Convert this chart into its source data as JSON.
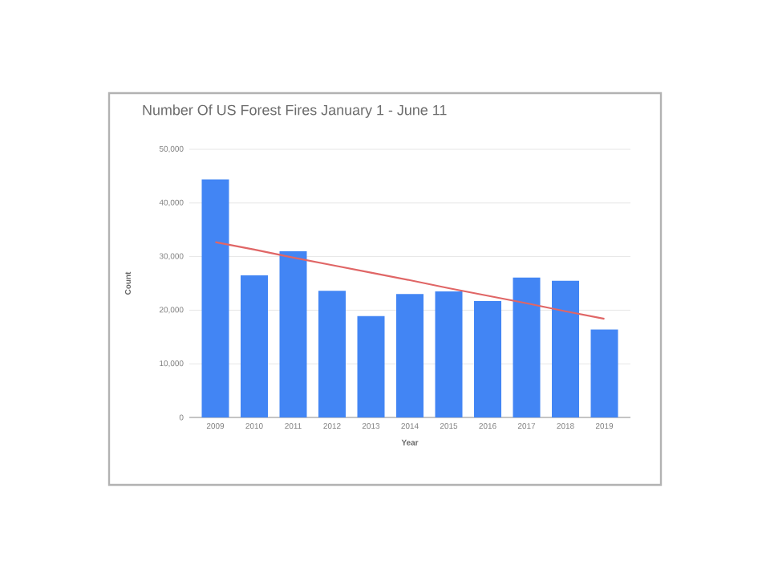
{
  "chart_data": {
    "type": "bar",
    "title": "Number Of US Forest Fires January 1 - June 11",
    "xlabel": "Year",
    "ylabel": "Count",
    "categories": [
      "2009",
      "2010",
      "2011",
      "2012",
      "2013",
      "2014",
      "2015",
      "2016",
      "2017",
      "2018",
      "2019"
    ],
    "series": [
      {
        "type": "bar",
        "color": "#4285f4",
        "values": [
          44400,
          26500,
          31000,
          23600,
          18900,
          23000,
          23500,
          21700,
          26100,
          25500,
          16400
        ]
      },
      {
        "type": "line",
        "color": "#e06666",
        "values": [
          32700,
          31300,
          29800,
          28400,
          27000,
          25600,
          24100,
          22700,
          21300,
          19800,
          18400
        ]
      }
    ],
    "ylim": [
      0,
      50000
    ],
    "yticks": [
      0,
      {
        "value": 10000,
        "label": "10,000"
      },
      {
        "value": 20000,
        "label": "20,000"
      },
      {
        "value": 30000,
        "label": "30,000"
      },
      {
        "value": 40000,
        "label": "40,000"
      },
      {
        "value": 50000,
        "label": "50,000"
      }
    ],
    "grid": "y"
  }
}
